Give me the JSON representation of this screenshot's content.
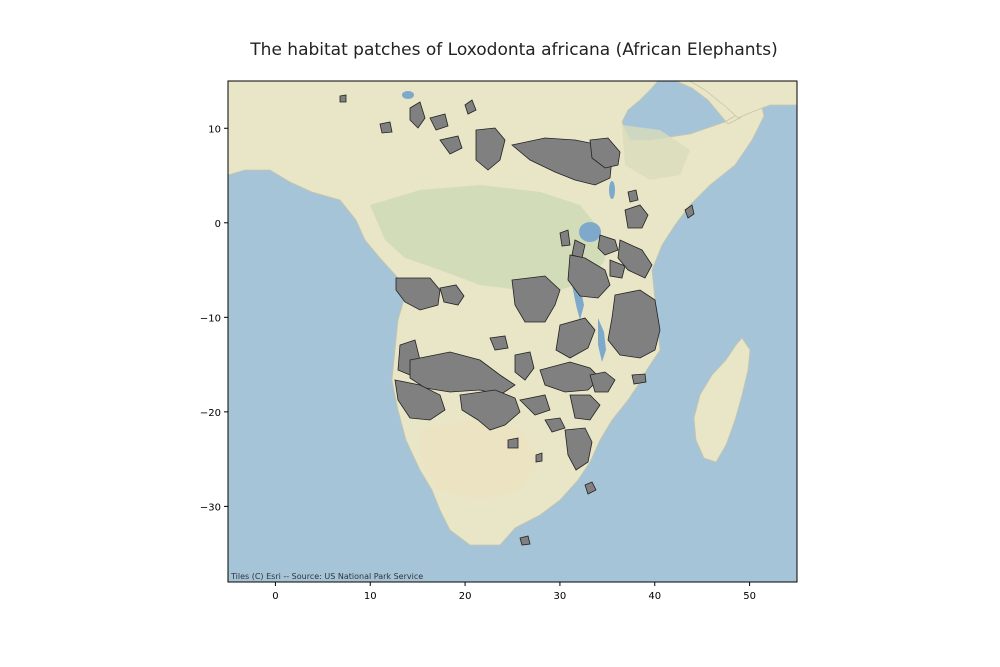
{
  "title": "The habitat patches of Loxodonta africana (African Elephants)",
  "attribution": "Tiles (C) Esri -- Source: US National Park Service",
  "colors": {
    "ocean": "#a6c4d8",
    "land": "#e8e6c7",
    "forest": "#cfd9b6",
    "desert": "#ece7cb",
    "habitat": "#808080",
    "habitat_edge": "#222222",
    "lake": "#7ea9cb"
  },
  "axes": {
    "x_ticks": [
      "0",
      "10",
      "20",
      "30",
      "40",
      "50"
    ],
    "y_ticks": [
      "10",
      "0",
      "−10",
      "−20",
      "−30"
    ]
  },
  "chart_data": {
    "type": "map",
    "title": "The habitat patches of Loxodonta africana (African Elephants)",
    "xlim": [
      -5,
      55
    ],
    "ylim": [
      -38,
      15
    ],
    "x_ticks": [
      0,
      10,
      20,
      30,
      40,
      50
    ],
    "y_ticks": [
      10,
      0,
      -10,
      -20,
      -30
    ],
    "grid": false
  }
}
